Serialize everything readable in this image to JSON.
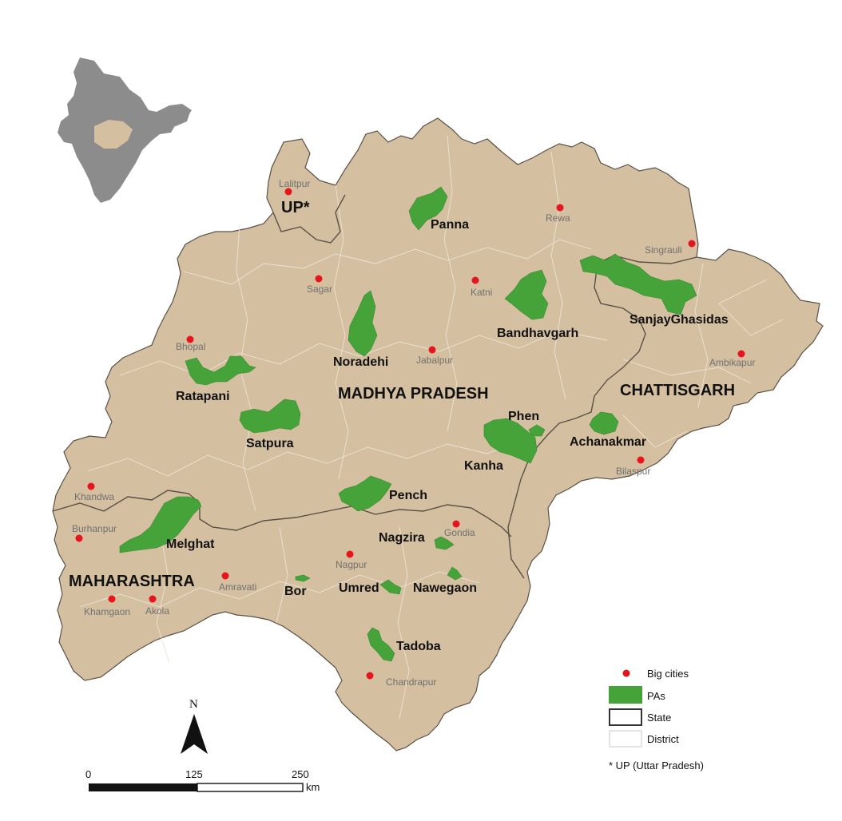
{
  "states": {
    "mp": "MADHYA PRADESH",
    "cg": "CHATTISGARH",
    "mh": "MAHARASHTRA",
    "up": "UP*"
  },
  "cities": [
    "Lalitpur",
    "Rewa",
    "Singrauli",
    "Sagar",
    "Katni",
    "Bhopal",
    "Jabalpur",
    "Ambikapur",
    "Bilaspur",
    "Khandwa",
    "Burhanpur",
    "Gondia",
    "Nagpur",
    "Amravati",
    "Khamgaon",
    "Akola",
    "Chandrapur"
  ],
  "protected_areas": [
    "Panna",
    "Bandhavgarh",
    "SanjayGhasidas",
    "Noradehi",
    "Ratapani",
    "Satpura",
    "Phen",
    "Achanakmar",
    "Kanha",
    "Pench",
    "Melghat",
    "Nagzira",
    "Nawegaon",
    "Umred",
    "Bor",
    "Tadoba"
  ],
  "legend": {
    "big_cities": "Big cities",
    "pas": "PAs",
    "state": "State",
    "district": "District",
    "note": "* UP (Uttar Pradesh)"
  },
  "scale": {
    "zero": "0",
    "mid": "125",
    "max": "250",
    "unit": "km"
  },
  "north": "N",
  "colors": {
    "land": "#d4c0a0",
    "pa": "#45a33a",
    "city": "#e8141c",
    "state_border": "#5a5048",
    "india": "#8c8c8c",
    "inset_region": "#d4c0a0"
  }
}
